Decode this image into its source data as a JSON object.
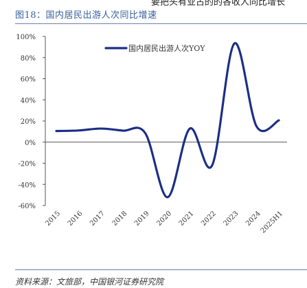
{
  "header": {
    "top_fragment": "要把头有业古的的各收人同比增长",
    "figure_title": "图18：国内居民出游人次同比增速"
  },
  "footer": {
    "source": "资料来源：文旅部，中国银河证券研究院"
  },
  "colors": {
    "series_line": "#1c2f85",
    "title_text": "#34609c",
    "rule": "#6a7fa8",
    "axis": "#555555"
  },
  "chart_data": {
    "type": "line",
    "title": "",
    "xlabel": "",
    "ylabel": "",
    "categories": [
      "2015",
      "2016",
      "2017",
      "2018",
      "2019",
      "2020",
      "2021",
      "2022",
      "2023",
      "2024",
      "2025H1"
    ],
    "series": [
      {
        "name": "国内居民出游人次YOY",
        "values": [
          10.5,
          11.0,
          12.8,
          10.8,
          8.4,
          -52.1,
          12.8,
          -22.1,
          93.3,
          14.8,
          20.6
        ]
      }
    ],
    "ylim": [
      -60,
      100
    ],
    "yticks": [
      -60,
      -40,
      -20,
      0,
      20,
      40,
      60,
      80,
      100
    ],
    "ytick_labels": [
      "-60%",
      "-40%",
      "-20%",
      "0%",
      "20%",
      "40%",
      "60%",
      "80%",
      "100%"
    ],
    "legend_position": "top-center",
    "grid": false,
    "smooth": true
  }
}
